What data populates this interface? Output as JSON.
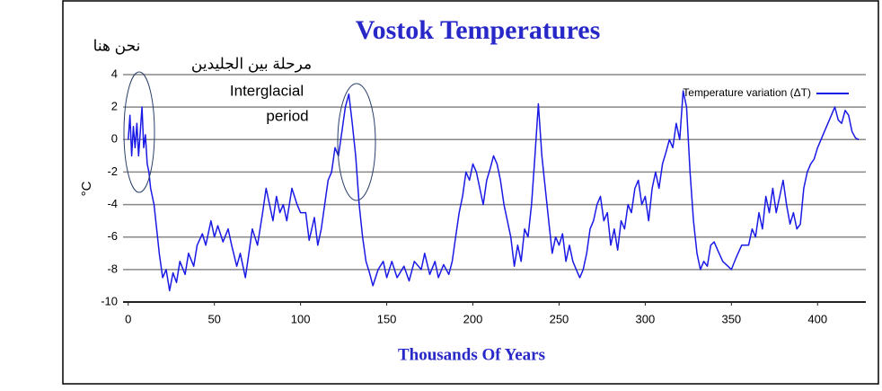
{
  "chart_data": {
    "type": "line",
    "title": "Vostok Temperatures",
    "x_label": "Thousands Of Years",
    "y_label": "°C",
    "annotations": [
      "نحن هنا",
      "مرحلة بين الجليدين",
      "Interglacial",
      "period"
    ],
    "x": [
      0,
      1,
      2,
      3,
      4,
      5,
      6,
      7,
      8,
      9,
      10,
      11,
      12,
      13,
      15,
      17,
      18,
      20,
      22,
      24,
      26,
      28,
      30,
      33,
      35,
      38,
      40,
      43,
      45,
      48,
      50,
      52,
      55,
      58,
      60,
      63,
      65,
      68,
      70,
      72,
      75,
      78,
      80,
      82,
      84,
      86,
      88,
      90,
      92,
      95,
      98,
      100,
      103,
      105,
      108,
      110,
      112,
      114,
      116,
      118,
      120,
      122,
      124,
      126,
      128,
      130,
      132,
      134,
      136,
      138,
      140,
      142,
      145,
      148,
      150,
      153,
      156,
      160,
      163,
      166,
      170,
      172,
      175,
      178,
      180,
      183,
      186,
      188,
      190,
      192,
      194,
      196,
      198,
      200,
      202,
      204,
      206,
      208,
      210,
      212,
      214,
      216,
      218,
      220,
      222,
      224,
      226,
      228,
      230,
      232,
      234,
      236,
      238,
      240,
      242,
      244,
      246,
      248,
      250,
      252,
      254,
      256,
      258,
      260,
      262,
      264,
      266,
      268,
      270,
      272,
      274,
      276,
      278,
      280,
      282,
      284,
      286,
      288,
      290,
      292,
      294,
      296,
      298,
      300,
      302,
      304,
      306,
      308,
      310,
      312,
      314,
      316,
      318,
      320,
      322,
      324,
      326,
      328,
      330,
      332,
      334,
      336,
      338,
      340,
      342,
      345,
      348,
      350,
      353,
      356,
      360,
      362,
      364,
      366,
      368,
      370,
      372,
      374,
      376,
      378,
      380,
      382,
      384,
      386,
      388,
      390,
      392,
      394,
      396,
      398,
      400,
      402,
      404,
      406,
      408,
      410,
      412,
      414,
      416,
      418,
      420,
      422,
      424
    ],
    "series": [
      {
        "name": "Temperature variation (ΔT)",
        "color": "#1a1ae6",
        "values": [
          0,
          1.5,
          -1,
          0.8,
          -0.5,
          1,
          -1,
          0.5,
          2,
          -0.5,
          0.3,
          -1.5,
          -2,
          -3,
          -4,
          -6,
          -7,
          -8.5,
          -8,
          -9.3,
          -8.2,
          -8.8,
          -7.5,
          -8.3,
          -7,
          -7.8,
          -6.5,
          -5.8,
          -6.5,
          -5,
          -6,
          -5.3,
          -6.3,
          -5.5,
          -6.5,
          -7.8,
          -7,
          -8.5,
          -7,
          -5.5,
          -6.5,
          -4.5,
          -3,
          -4,
          -5,
          -3.5,
          -4.5,
          -4,
          -5,
          -3,
          -4,
          -4.5,
          -4.5,
          -6.2,
          -4.8,
          -6.5,
          -5.5,
          -4,
          -2.5,
          -2,
          -0.5,
          -1,
          0.5,
          2,
          2.8,
          1,
          -1,
          -4,
          -6,
          -7.5,
          -8.2,
          -9,
          -8,
          -7.5,
          -8.5,
          -7.5,
          -8.5,
          -7.8,
          -8.7,
          -7.5,
          -8,
          -7,
          -8.3,
          -7.5,
          -8.5,
          -7.7,
          -8.3,
          -7.5,
          -6,
          -4.5,
          -3.5,
          -2,
          -2.5,
          -1.5,
          -2,
          -3,
          -4,
          -2.5,
          -1.8,
          -1,
          -1.5,
          -2.5,
          -4,
          -5,
          -6,
          -7.8,
          -6.5,
          -7.5,
          -5.5,
          -6,
          -4,
          -1,
          2.2,
          -1,
          -3,
          -5,
          -7,
          -6,
          -6.5,
          -5.8,
          -7.5,
          -6.5,
          -7.5,
          -8,
          -8.5,
          -8,
          -7,
          -5.5,
          -5,
          -4,
          -3.5,
          -5,
          -4.5,
          -6.5,
          -5.5,
          -6.8,
          -5,
          -5.5,
          -4,
          -4.5,
          -3,
          -2.5,
          -4,
          -3.5,
          -5,
          -3,
          -2,
          -3,
          -1.5,
          -0.8,
          0,
          -0.5,
          1,
          0,
          3,
          2,
          -2,
          -5,
          -7,
          -8,
          -7.5,
          -7.8,
          -6.5,
          -6.3,
          -6.8,
          -7.5,
          -7.8,
          -8,
          -7.2,
          -6.5,
          -6.5,
          -5.5,
          -6,
          -4.5,
          -5.5,
          -3.5,
          -4.5,
          -3,
          -4.5,
          -3.5,
          -2.5,
          -4,
          -5.2,
          -4.5,
          -5.5,
          -5.2,
          -3,
          -2,
          -1.5,
          -1.2,
          -0.5,
          0,
          0.5,
          1,
          1.5,
          2,
          1.2,
          1,
          1.8,
          1.5,
          0.5,
          0.1,
          0
        ]
      }
    ],
    "xlim": [
      -3,
      428
    ],
    "xticks": [
      0,
      50,
      100,
      150,
      200,
      250,
      300,
      350,
      400
    ],
    "ylim": [
      -10,
      4
    ],
    "yticks": [
      -10,
      -8,
      -6,
      -4,
      -2,
      0,
      2,
      4
    ],
    "grid": true,
    "legend": "upper right"
  }
}
